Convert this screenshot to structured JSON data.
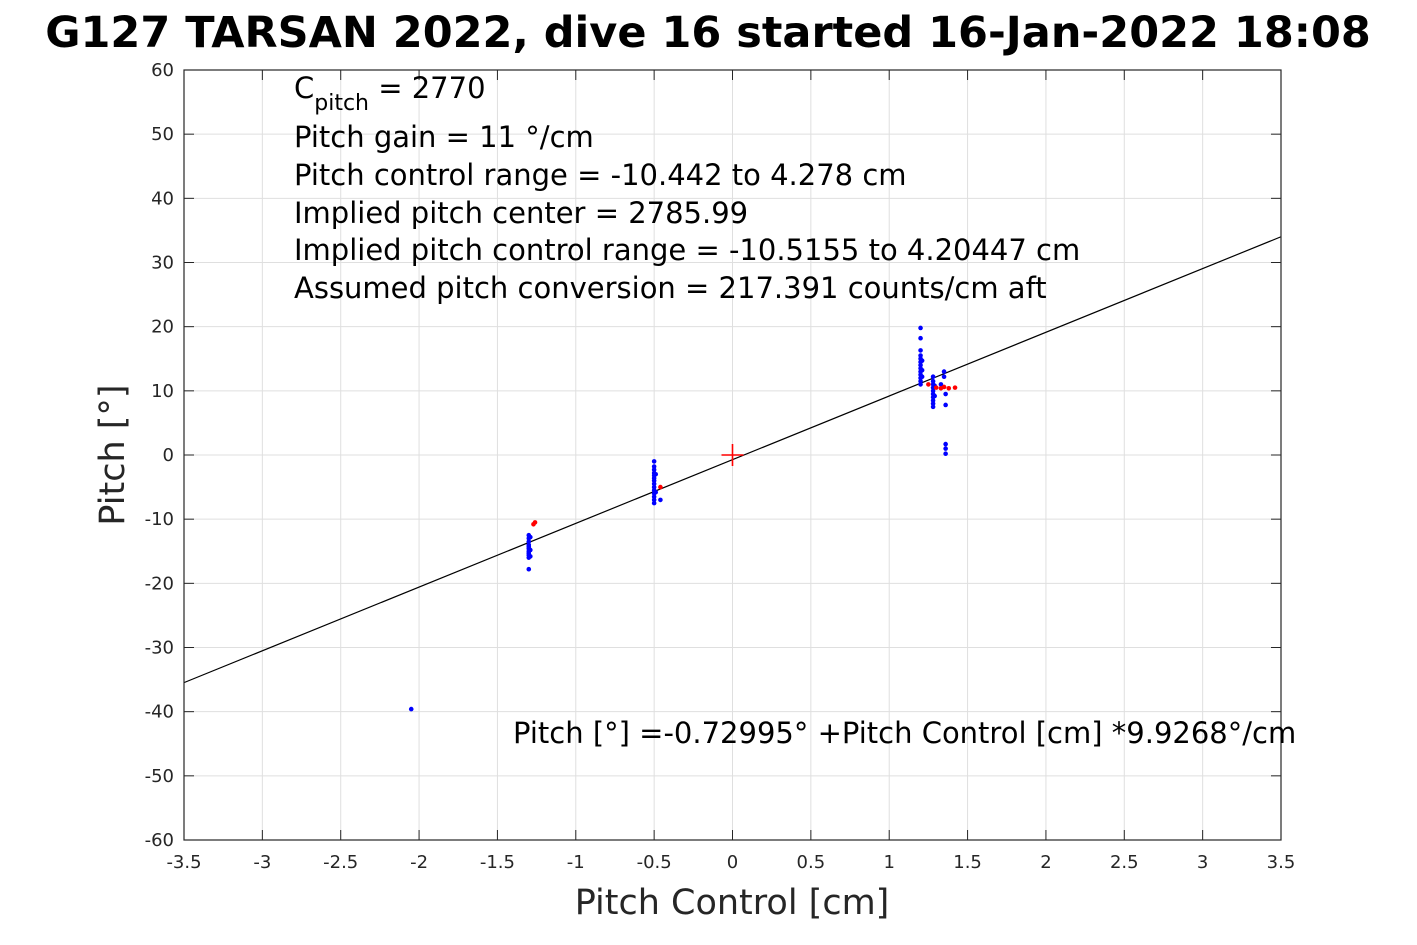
{
  "chart_data": {
    "type": "scatter",
    "title": "G127 TARSAN 2022, dive 16 started 16-Jan-2022 18:08",
    "xlabel": "Pitch Control [cm]",
    "ylabel": "Pitch [°]",
    "xlim": [
      -3.5,
      3.5
    ],
    "ylim": [
      -60,
      60
    ],
    "xticks": [
      -3.5,
      -3,
      -2.5,
      -2,
      -1.5,
      -1,
      -0.5,
      0,
      0.5,
      1,
      1.5,
      2,
      2.5,
      3,
      3.5
    ],
    "xtick_labels": [
      "-3.5",
      "-3",
      "-2.5",
      "-2",
      "-1.5",
      "-1",
      "-0.5",
      "0",
      "0.5",
      "1",
      "1.5",
      "2",
      "2.5",
      "3",
      "3.5"
    ],
    "yticks": [
      60,
      50,
      40,
      30,
      20,
      10,
      0,
      -10,
      -20,
      -30,
      -40,
      -50,
      -60
    ],
    "ytick_labels": [
      "60",
      "50",
      "40",
      "30",
      "20",
      "10",
      "0",
      "-10",
      "-20",
      "-30",
      "-40",
      "-50",
      "-60"
    ],
    "grid": true,
    "annotations": {
      "c_pitch_main": "C",
      "c_pitch_sub": "pitch",
      "c_pitch_value": " = 2770",
      "lines": [
        "Pitch gain = 11 °/cm",
        "Pitch control range = -10.442 to 4.278 cm",
        "Implied pitch center = 2785.99",
        "Implied pitch control range = -10.5155 to 4.20447 cm",
        "Assumed pitch conversion = 217.391 counts/cm aft"
      ],
      "fit_equation": "Pitch [°] =-0.72995° +Pitch Control [cm] *9.9268°/cm"
    },
    "fit_line": {
      "intercept": -0.72995,
      "slope": 9.9268,
      "color": "#000000"
    },
    "center_marker": {
      "x": 0,
      "y": 0,
      "color": "#ff0000"
    },
    "series": [
      {
        "color": "#0000ff",
        "points": [
          [
            -2.05,
            -39.6
          ],
          [
            -1.3,
            -12.5
          ],
          [
            -1.3,
            -13.0
          ],
          [
            -1.3,
            -13.5
          ],
          [
            -1.3,
            -14.0
          ],
          [
            -1.3,
            -14.3
          ],
          [
            -1.3,
            -14.6
          ],
          [
            -1.3,
            -15.0
          ],
          [
            -1.3,
            -15.3
          ],
          [
            -1.3,
            -15.6
          ],
          [
            -1.3,
            -16.0
          ],
          [
            -1.3,
            -17.8
          ],
          [
            -1.29,
            -12.8
          ],
          [
            -1.29,
            -14.8
          ],
          [
            -1.29,
            -15.8
          ],
          [
            -0.5,
            -1.0
          ],
          [
            -0.5,
            -1.8
          ],
          [
            -0.5,
            -2.3
          ],
          [
            -0.5,
            -2.8
          ],
          [
            -0.5,
            -3.2
          ],
          [
            -0.5,
            -3.6
          ],
          [
            -0.5,
            -4.0
          ],
          [
            -0.5,
            -4.5
          ],
          [
            -0.5,
            -5.0
          ],
          [
            -0.5,
            -5.5
          ],
          [
            -0.5,
            -6.0
          ],
          [
            -0.5,
            -6.5
          ],
          [
            -0.5,
            -7.0
          ],
          [
            -0.5,
            -7.5
          ],
          [
            -0.49,
            -3.0
          ],
          [
            -0.49,
            -5.8
          ],
          [
            -0.46,
            -7.0
          ],
          [
            1.2,
            19.8
          ],
          [
            1.2,
            18.2
          ],
          [
            1.2,
            16.3
          ],
          [
            1.2,
            15.5
          ],
          [
            1.2,
            15.0
          ],
          [
            1.2,
            14.5
          ],
          [
            1.2,
            14.0
          ],
          [
            1.2,
            13.5
          ],
          [
            1.2,
            13.0
          ],
          [
            1.2,
            12.5
          ],
          [
            1.2,
            12.0
          ],
          [
            1.2,
            11.5
          ],
          [
            1.2,
            11.0
          ],
          [
            1.21,
            14.7
          ],
          [
            1.21,
            13.2
          ],
          [
            1.21,
            12.2
          ],
          [
            1.28,
            12.2
          ],
          [
            1.28,
            11.5
          ],
          [
            1.28,
            11.0
          ],
          [
            1.28,
            10.5
          ],
          [
            1.28,
            10.0
          ],
          [
            1.28,
            9.5
          ],
          [
            1.28,
            9.0
          ],
          [
            1.28,
            8.5
          ],
          [
            1.28,
            8.0
          ],
          [
            1.28,
            7.5
          ],
          [
            1.29,
            10.8
          ],
          [
            1.29,
            9.2
          ],
          [
            1.33,
            11.0
          ],
          [
            1.35,
            13.0
          ],
          [
            1.35,
            12.2
          ],
          [
            1.36,
            9.5
          ],
          [
            1.36,
            7.8
          ],
          [
            1.36,
            1.7
          ],
          [
            1.36,
            1.0
          ],
          [
            1.36,
            0.2
          ]
        ]
      },
      {
        "color": "#ff0000",
        "points": [
          [
            -1.26,
            -10.5
          ],
          [
            -1.27,
            -10.8
          ],
          [
            -0.46,
            -5.0
          ],
          [
            1.25,
            11.0
          ],
          [
            1.3,
            10.5
          ],
          [
            1.33,
            10.4
          ],
          [
            1.35,
            10.6
          ],
          [
            1.38,
            10.4
          ],
          [
            1.42,
            10.5
          ]
        ]
      }
    ]
  }
}
